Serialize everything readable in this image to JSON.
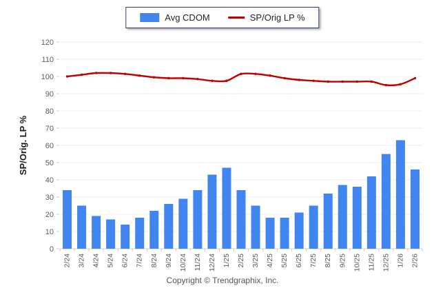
{
  "legend": {
    "series1_label": "Avg CDOM",
    "series2_label": "SP/Orig LP %"
  },
  "footer": {
    "copyright": "Copyright © Trendgraphix, Inc."
  },
  "colors": {
    "bar": "#4186F0",
    "line": "#C00000",
    "grid": "#ECECEE",
    "axis": "#CCCCCC",
    "tick_label": "#5A5A5A",
    "axis_title": "#1A1A1A",
    "legend_border": "#2E3F66"
  },
  "chart_data": {
    "type": "bar",
    "title": "",
    "xlabel": "",
    "ylabel": "SP/Orig. LP %",
    "ylim": [
      0,
      120
    ],
    "ytick_step": 10,
    "grid": "horizontal",
    "legend_position": "top-center",
    "categories": [
      "2/24",
      "3/24",
      "4/24",
      "5/24",
      "6/24",
      "7/24",
      "8/24",
      "9/24",
      "10/24",
      "11/24",
      "12/24",
      "1/25",
      "2/25",
      "3/25",
      "4/25",
      "5/25",
      "6/25",
      "7/25",
      "8/25",
      "9/25",
      "10/25",
      "11/25",
      "12/25",
      "1/26",
      "2/26"
    ],
    "series": [
      {
        "name": "Avg CDOM",
        "type": "bar",
        "values": [
          34,
          25,
          19,
          17,
          14,
          18,
          22,
          26,
          29,
          34,
          43,
          47,
          34,
          25,
          18,
          18,
          21,
          25,
          32,
          37,
          36,
          42,
          55,
          63,
          46
        ]
      },
      {
        "name": "SP/Orig LP %",
        "type": "line",
        "values": [
          100,
          101,
          102,
          102,
          101.5,
          100.5,
          99.5,
          99,
          99,
          98.5,
          97.5,
          97.5,
          101.5,
          101.5,
          100.5,
          99,
          98,
          97.5,
          97,
          97,
          97,
          97,
          95,
          95.5,
          99
        ]
      }
    ]
  }
}
